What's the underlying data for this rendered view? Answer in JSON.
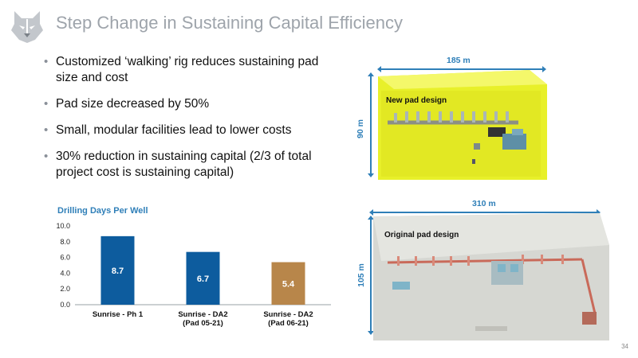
{
  "slide": {
    "title": "Step Change in Sustaining Capital Efficiency",
    "page_number": "34",
    "bullets": [
      "Customized ‘walking’ rig reduces sustaining pad size and cost",
      "Pad size decreased by 50%",
      "Small, modular facilities lead to lower costs",
      "30% reduction in sustaining capital (2/3 of total project cost is sustaining capital)"
    ]
  },
  "logo": {
    "icon": "husky-dog-head-icon"
  },
  "pads": {
    "new": {
      "caption": "New pad design",
      "width_label": "185 m",
      "height_label": "90 m"
    },
    "original": {
      "caption": "Original pad design",
      "width_label": "310 m",
      "height_label": "105 m"
    }
  },
  "chart_data": {
    "type": "bar",
    "title": "Drilling Days Per Well",
    "categories": [
      [
        "Sunrise - Ph 1"
      ],
      [
        "Sunrise - DA2",
        "(Pad 05-21)"
      ],
      [
        "Sunrise - DA2",
        "(Pad 06-21)"
      ]
    ],
    "values": [
      8.7,
      6.7,
      5.4
    ],
    "data_labels": [
      "8.7",
      "6.7",
      "5.4"
    ],
    "bar_colors": [
      "#0d5c9e",
      "#0d5c9e",
      "#b8864a"
    ],
    "ylim": [
      0,
      10
    ],
    "yticks": [
      "0.0",
      "2.0",
      "4.0",
      "6.0",
      "8.0",
      "10.0"
    ],
    "grid": false,
    "legend": false
  }
}
